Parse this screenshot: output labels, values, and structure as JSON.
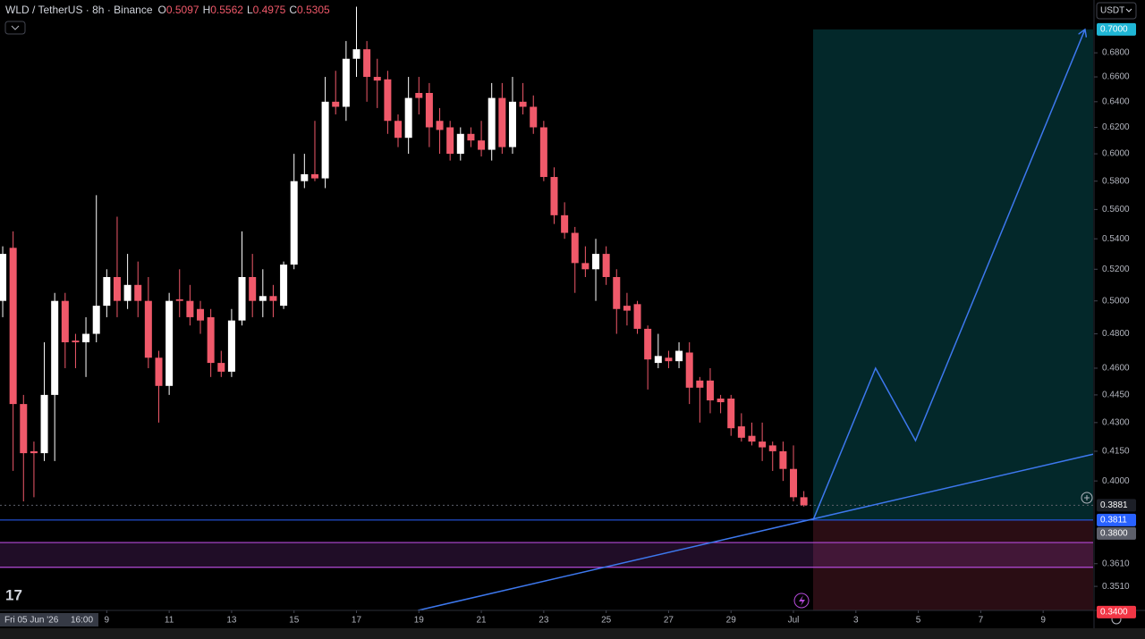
{
  "chart_data": {
    "type": "candlestick",
    "title": "WLD / TetherUS · 8h · Binance",
    "ohlc_legend": [
      {
        "label": "O",
        "value": "0.5097"
      },
      {
        "label": "H",
        "value": "0.5562"
      },
      {
        "label": "L",
        "value": "0.4975"
      },
      {
        "label": "C",
        "value": "0.5305"
      }
    ],
    "currency_button": "USDT",
    "crosshair_time": [
      "Fri 05 Jun '26",
      "16:00"
    ],
    "y_scale": "log",
    "grid": false,
    "up_color": "#ffffff",
    "down_color": "#f0596a",
    "x": [
      5.667,
      6,
      6.333,
      6.667,
      7,
      7.333,
      7.667,
      8,
      8.333,
      8.667,
      9,
      9.333,
      9.667,
      10,
      10.333,
      10.667,
      11,
      11.333,
      11.667,
      12,
      12.333,
      12.667,
      13,
      13.333,
      13.667,
      14,
      14.333,
      14.667,
      15,
      15.333,
      15.667,
      16,
      16.333,
      16.667,
      17,
      17.333,
      17.667,
      18,
      18.333,
      18.667,
      19,
      19.333,
      19.667,
      20,
      20.333,
      20.667,
      21,
      21.333,
      21.667,
      22,
      22.333,
      22.667,
      23,
      23.333,
      23.667,
      24,
      24.333,
      24.667,
      25,
      25.333,
      25.667,
      26,
      26.333,
      26.667,
      27,
      27.333,
      27.667,
      28,
      28.333,
      28.667,
      29,
      29.333,
      29.667,
      30,
      30.333,
      30.667,
      31,
      31.333
    ],
    "open": [
      0.5,
      0.534,
      0.44,
      0.415,
      0.414,
      0.445,
      0.5,
      0.476,
      0.475,
      0.48,
      0.497,
      0.515,
      0.5,
      0.51,
      0.5,
      0.466,
      0.45,
      0.501,
      0.5,
      0.495,
      0.49,
      0.463,
      0.458,
      0.488,
      0.515,
      0.5,
      0.503,
      0.497,
      0.523,
      0.58,
      0.585,
      0.582,
      0.64,
      0.636,
      0.675,
      0.683,
      0.66,
      0.658,
      0.625,
      0.612,
      0.647,
      0.647,
      0.625,
      0.62,
      0.6,
      0.615,
      0.61,
      0.603,
      0.643,
      0.605,
      0.64,
      0.636,
      0.62,
      0.583,
      0.556,
      0.544,
      0.524,
      0.52,
      0.53,
      0.515,
      0.497,
      0.498,
      0.483,
      0.463,
      0.466,
      0.464,
      0.469,
      0.453,
      0.453,
      0.443,
      0.443,
      0.428,
      0.423,
      0.42,
      0.418,
      0.415,
      0.406,
      0.392
    ],
    "high": [
      0.535,
      0.545,
      0.445,
      0.42,
      0.475,
      0.505,
      0.505,
      0.48,
      0.49,
      0.57,
      0.52,
      0.555,
      0.53,
      0.525,
      0.515,
      0.47,
      0.505,
      0.52,
      0.51,
      0.5,
      0.495,
      0.47,
      0.495,
      0.545,
      0.53,
      0.52,
      0.51,
      0.525,
      0.6,
      0.6,
      0.625,
      0.66,
      0.665,
      0.69,
      0.72,
      0.69,
      0.675,
      0.665,
      0.63,
      0.66,
      0.66,
      0.655,
      0.635,
      0.625,
      0.62,
      0.62,
      0.625,
      0.655,
      0.655,
      0.66,
      0.655,
      0.645,
      0.625,
      0.59,
      0.565,
      0.548,
      0.535,
      0.54,
      0.535,
      0.52,
      0.505,
      0.5,
      0.485,
      0.48,
      0.47,
      0.475,
      0.475,
      0.455,
      0.46,
      0.445,
      0.445,
      0.435,
      0.43,
      0.43,
      0.42,
      0.42,
      0.418,
      0.395
    ],
    "low": [
      0.49,
      0.405,
      0.39,
      0.392,
      0.41,
      0.41,
      0.46,
      0.46,
      0.455,
      0.475,
      0.49,
      0.49,
      0.495,
      0.49,
      0.46,
      0.43,
      0.445,
      0.49,
      0.485,
      0.48,
      0.455,
      0.455,
      0.455,
      0.485,
      0.49,
      0.49,
      0.49,
      0.495,
      0.52,
      0.575,
      0.58,
      0.575,
      0.63,
      0.625,
      0.66,
      0.64,
      0.635,
      0.615,
      0.605,
      0.6,
      0.63,
      0.605,
      0.6,
      0.595,
      0.595,
      0.605,
      0.598,
      0.595,
      0.6,
      0.6,
      0.63,
      0.615,
      0.58,
      0.55,
      0.54,
      0.505,
      0.515,
      0.5,
      0.51,
      0.48,
      0.485,
      0.48,
      0.448,
      0.46,
      0.46,
      0.46,
      0.44,
      0.43,
      0.435,
      0.435,
      0.423,
      0.42,
      0.418,
      0.41,
      0.405,
      0.4,
      0.39,
      0.3875
    ],
    "close": [
      0.53,
      0.44,
      0.414,
      0.414,
      0.445,
      0.5,
      0.475,
      0.475,
      0.48,
      0.497,
      0.515,
      0.5,
      0.51,
      0.5,
      0.466,
      0.45,
      0.5,
      0.5,
      0.49,
      0.488,
      0.463,
      0.458,
      0.488,
      0.515,
      0.5,
      0.503,
      0.5,
      0.523,
      0.58,
      0.585,
      0.582,
      0.64,
      0.636,
      0.675,
      0.683,
      0.66,
      0.657,
      0.625,
      0.612,
      0.643,
      0.643,
      0.62,
      0.618,
      0.6,
      0.615,
      0.61,
      0.603,
      0.643,
      0.605,
      0.64,
      0.636,
      0.62,
      0.583,
      0.556,
      0.544,
      0.524,
      0.52,
      0.53,
      0.515,
      0.495,
      0.494,
      0.483,
      0.465,
      0.467,
      0.464,
      0.47,
      0.449,
      0.449,
      0.442,
      0.441,
      0.427,
      0.422,
      0.42,
      0.417,
      0.415,
      0.406,
      0.392,
      0.3881
    ],
    "xlim": [
      5.58,
      40.6
    ],
    "ylim": [
      0.3407,
      0.726
    ],
    "xticks": [
      9,
      11,
      13,
      15,
      17,
      19,
      21,
      23,
      25,
      27,
      29,
      {
        "value": 31,
        "label": "Jul"
      },
      {
        "value": 33,
        "label": "3"
      },
      {
        "value": 35,
        "label": "5"
      },
      {
        "value": 37,
        "label": "7"
      },
      {
        "value": 39,
        "label": "9"
      }
    ],
    "yticks": [
      {
        "value": 0.68,
        "label": "0.6800"
      },
      {
        "value": 0.66,
        "label": "0.6600"
      },
      {
        "value": 0.64,
        "label": "0.6400"
      },
      {
        "value": 0.62,
        "label": "0.6200"
      },
      {
        "value": 0.6,
        "label": "0.6000"
      },
      {
        "value": 0.58,
        "label": "0.5800"
      },
      {
        "value": 0.56,
        "label": "0.5600"
      },
      {
        "value": 0.54,
        "label": "0.5400"
      },
      {
        "value": 0.52,
        "label": "0.5200"
      },
      {
        "value": 0.5,
        "label": "0.5000"
      },
      {
        "value": 0.48,
        "label": "0.4800"
      },
      {
        "value": 0.46,
        "label": "0.4600"
      },
      {
        "value": 0.445,
        "label": "0.4450"
      },
      {
        "value": 0.43,
        "label": "0.4300"
      },
      {
        "value": 0.415,
        "label": "0.4150"
      },
      {
        "value": 0.4,
        "label": "0.4000"
      },
      {
        "value": 0.361,
        "label": "0.3610"
      },
      {
        "value": 0.351,
        "label": "0.3510"
      }
    ],
    "price_labels": [
      {
        "value": 0.7,
        "label": "0.7000",
        "color": "#1fb6d6"
      },
      {
        "value": 0.3881,
        "label": "0.3881",
        "color": "#1c1f27"
      },
      {
        "value": 0.3811,
        "label": "0.3811",
        "color": "#2962ff"
      },
      {
        "value": 0.38,
        "label": "0.3800",
        "color": "#5d606b"
      },
      {
        "value": 0.34,
        "label": "0.3400",
        "color": "#f23645"
      }
    ],
    "position": {
      "entry": 0.3811,
      "target": 0.7,
      "stop": 0.34,
      "x_start": 31.63,
      "profit_color": "#03282a",
      "loss_color": "#2a0d14"
    },
    "entry_line_color": "#2962ff",
    "zone": {
      "top": 0.3706,
      "bottom": 0.3594,
      "color": "#b44ad8"
    },
    "drawings": {
      "trend_line": {
        "x": [
          18.97,
          40.6
        ],
        "y": [
          0.3407,
          0.4135
        ],
        "color": "#3d78ee"
      },
      "projection": {
        "x": [
          31.63,
          33.63,
          34.91,
          40.34
        ],
        "y": [
          0.3811,
          0.46,
          0.4205,
          0.7
        ],
        "color": "#3d78ee"
      }
    }
  }
}
